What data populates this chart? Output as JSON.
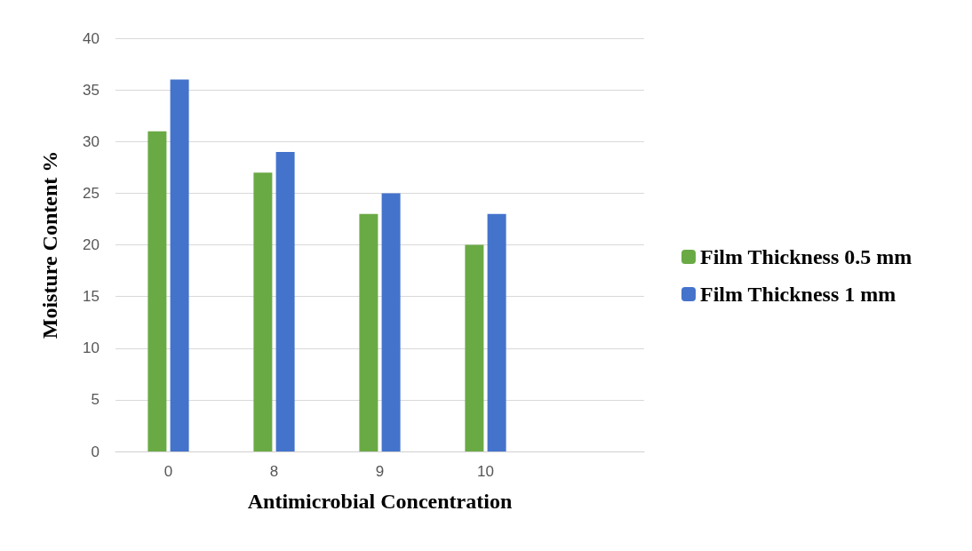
{
  "chart_data": {
    "type": "bar",
    "xlabel": "Antimicrobial Concentration",
    "ylabel": "Moisture Content %",
    "categories": [
      "0",
      "8",
      "9",
      "10",
      null
    ],
    "series": [
      {
        "name": "Film Thickness 0.5 mm",
        "color": "#6aaa45",
        "values": [
          31,
          27,
          23,
          20,
          null
        ]
      },
      {
        "name": "Film Thickness 1 mm",
        "color": "#4473cc",
        "values": [
          36,
          29,
          25,
          23,
          null
        ]
      }
    ],
    "ylim": [
      0,
      40
    ],
    "yticks": [
      0,
      5,
      10,
      15,
      20,
      25,
      30,
      35,
      40
    ],
    "grid": "y",
    "legend": "right"
  }
}
